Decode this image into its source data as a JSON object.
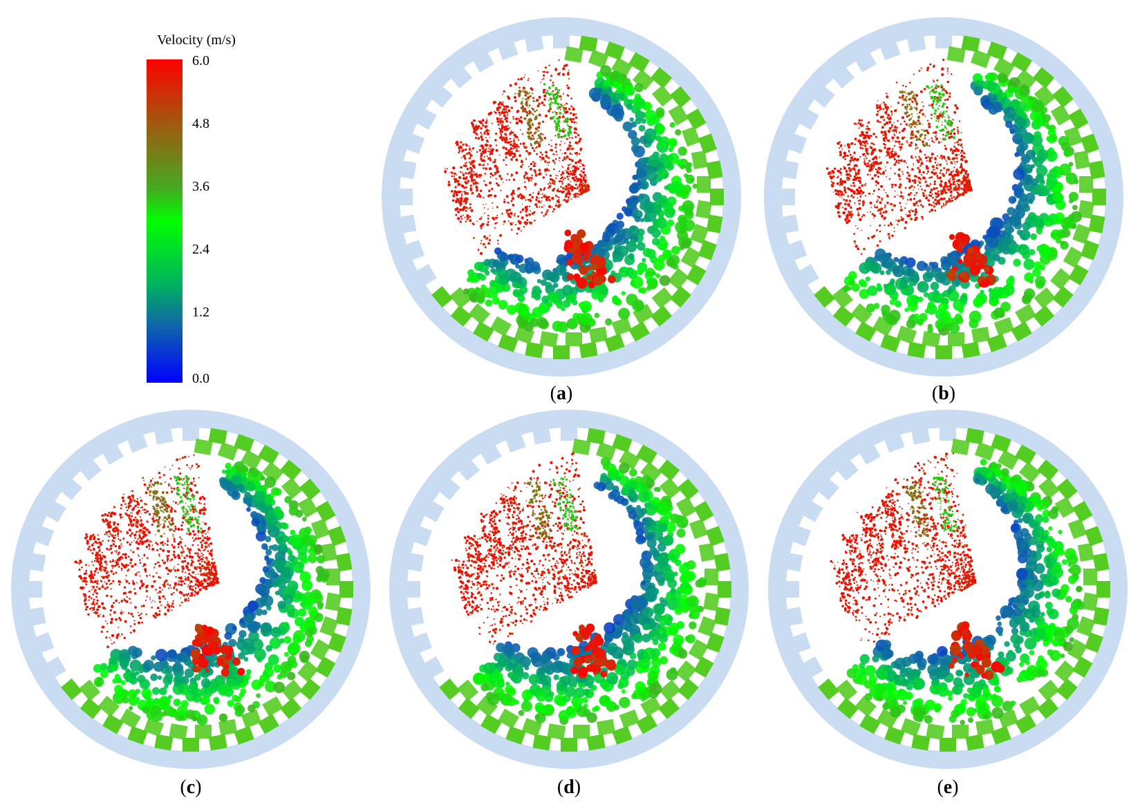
{
  "figure": {
    "colorbar": {
      "title": "Velocity (m/s)",
      "ticks": [
        "6.0",
        "4.8",
        "3.6",
        "2.4",
        "1.2",
        "0.0"
      ],
      "colors": [
        "#ff0000",
        "#a05a10",
        "#00ff00",
        "#00c040",
        "#1060b0",
        "#0000ff"
      ]
    },
    "panels": [
      {
        "letter": "a",
        "label_open": "(",
        "label_close": ")"
      },
      {
        "letter": "b",
        "label_open": "(",
        "label_close": ")"
      },
      {
        "letter": "c",
        "label_open": "(",
        "label_close": ")"
      },
      {
        "letter": "d",
        "label_open": "(",
        "label_close": ")"
      },
      {
        "letter": "e",
        "label_open": "(",
        "label_close": ")"
      }
    ],
    "drum_color": "#c9dcf1",
    "liner_color": "#55cc22"
  }
}
